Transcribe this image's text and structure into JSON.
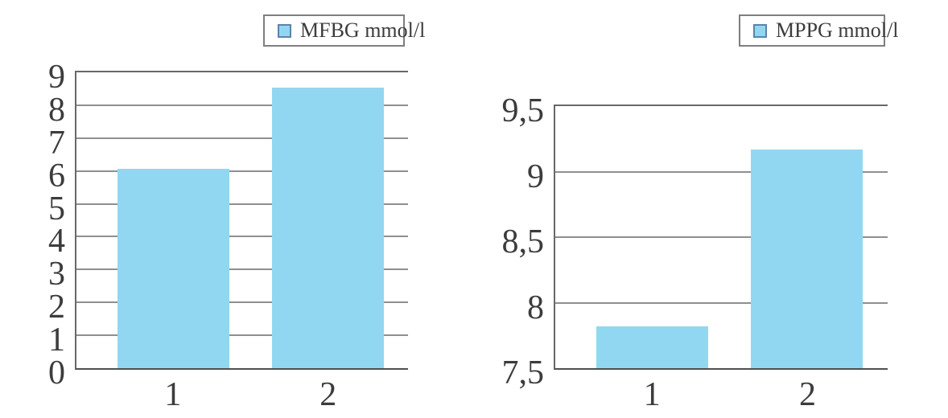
{
  "figure": {
    "background": "#ffffff",
    "text_color": "#3c3c3c",
    "gridline_color": "#8f8f8f",
    "axis_color": "#686868",
    "legend_box_border": "#7f7f7f",
    "legend_marker_border": "#5b84a8",
    "decimal_separator": ","
  },
  "chart_data": [
    {
      "type": "bar",
      "title": "",
      "legend_label": "MFBG mmol/l",
      "legend_position": "top-right",
      "categories": [
        "1",
        "2"
      ],
      "values": [
        6.07,
        8.53
      ],
      "ylim": [
        0,
        9
      ],
      "ytick_step": 1,
      "ytick_labels": [
        "9",
        "8",
        "7",
        "6",
        "5",
        "4",
        "3",
        "2",
        "1",
        "0"
      ],
      "xlabel": "",
      "ylabel": "",
      "grid": true,
      "bar_color": "#92d7f2"
    },
    {
      "type": "bar",
      "title": "",
      "legend_label": "MPPG mmol/l",
      "legend_position": "top-right",
      "categories": [
        "1",
        "2"
      ],
      "values": [
        7.82,
        9.17
      ],
      "ylim": [
        7.5,
        9.5
      ],
      "ytick_step": 0.5,
      "ytick_labels": [
        "9,5",
        "9",
        "8,5",
        "8",
        "7,5"
      ],
      "xlabel": "",
      "ylabel": "",
      "grid": true,
      "bar_color": "#92d7f2"
    }
  ]
}
